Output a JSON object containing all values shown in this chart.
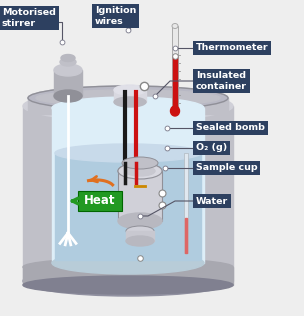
{
  "bg_color": "#eeeeee",
  "label_bg": "#2d4060",
  "label_fg": "#ffffff",
  "labels": {
    "motorised_stirrer": "Motorised\nstirrer",
    "ignition_wires": "Ignition\nwires",
    "thermometer": "Thermometer",
    "insulated_container": "Insulated\ncontainer",
    "sealed_bomb": "Sealed bomb",
    "o2": "O₂ (g)",
    "sample_cup": "Sample cup",
    "water": "Water"
  },
  "heat_label": "Heat",
  "heat_bg": "#229922",
  "wire_black": "#1a1a1a",
  "wire_red": "#cc1111",
  "thermo_red": "#cc1111",
  "container_body": "#c0c0c8",
  "container_top": "#d0d0d8",
  "container_rim": "#a8a8b0",
  "window_glass": "#ccddf0",
  "water_fill": "#b0ccdf",
  "water_surface": "#c8daea",
  "bomb_body": "#d0d0d8",
  "bomb_dark": "#a8a8b0",
  "stirrer_body": "#b8b8c0",
  "orange_arrow": "#e07020",
  "line_color": "#555566"
}
